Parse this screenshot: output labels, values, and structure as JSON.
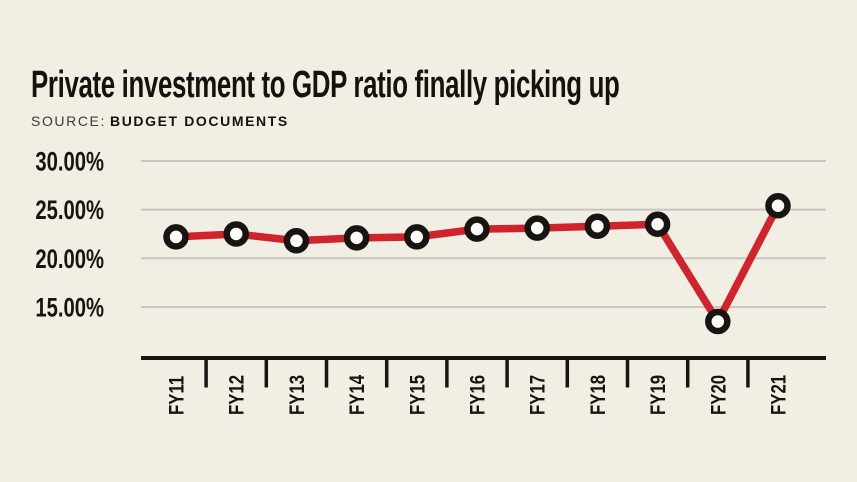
{
  "header": {
    "title": "Private investment to GDP ratio finally picking up",
    "source_label": "SOURCE:",
    "source_value": "BUDGET DOCUMENTS"
  },
  "chart_data": {
    "type": "line",
    "title": "Private investment to GDP ratio finally picking up",
    "source": "BUDGET DOCUMENTS",
    "categories": [
      "FY11",
      "FY12",
      "FY13",
      "FY14",
      "FY15",
      "FY16",
      "FY17",
      "FY18",
      "FY19",
      "FY20",
      "FY21"
    ],
    "series": [
      {
        "name": "Private investment to GDP ratio (%)",
        "values": [
          22.2,
          22.5,
          21.8,
          22.1,
          22.2,
          23.0,
          23.1,
          23.3,
          23.5,
          13.5,
          25.4
        ]
      }
    ],
    "xlabel": "",
    "ylabel": "",
    "y_ticks": [
      30,
      25,
      20,
      15
    ],
    "y_tick_labels": [
      "30.00%",
      "25.00%",
      "20.00%",
      "15.00%"
    ],
    "ylim": [
      9.75,
      31.5
    ],
    "grid": "horizontal-only",
    "legend": "none",
    "marker": "circle-open",
    "colors": {
      "line": "#d0232b",
      "marker_fill": "#fdfdfa",
      "marker_stroke": "#161511",
      "grid": "#c7c6c0",
      "axis": "#161511",
      "background": "#f1eee4",
      "text": "#161511"
    }
  }
}
